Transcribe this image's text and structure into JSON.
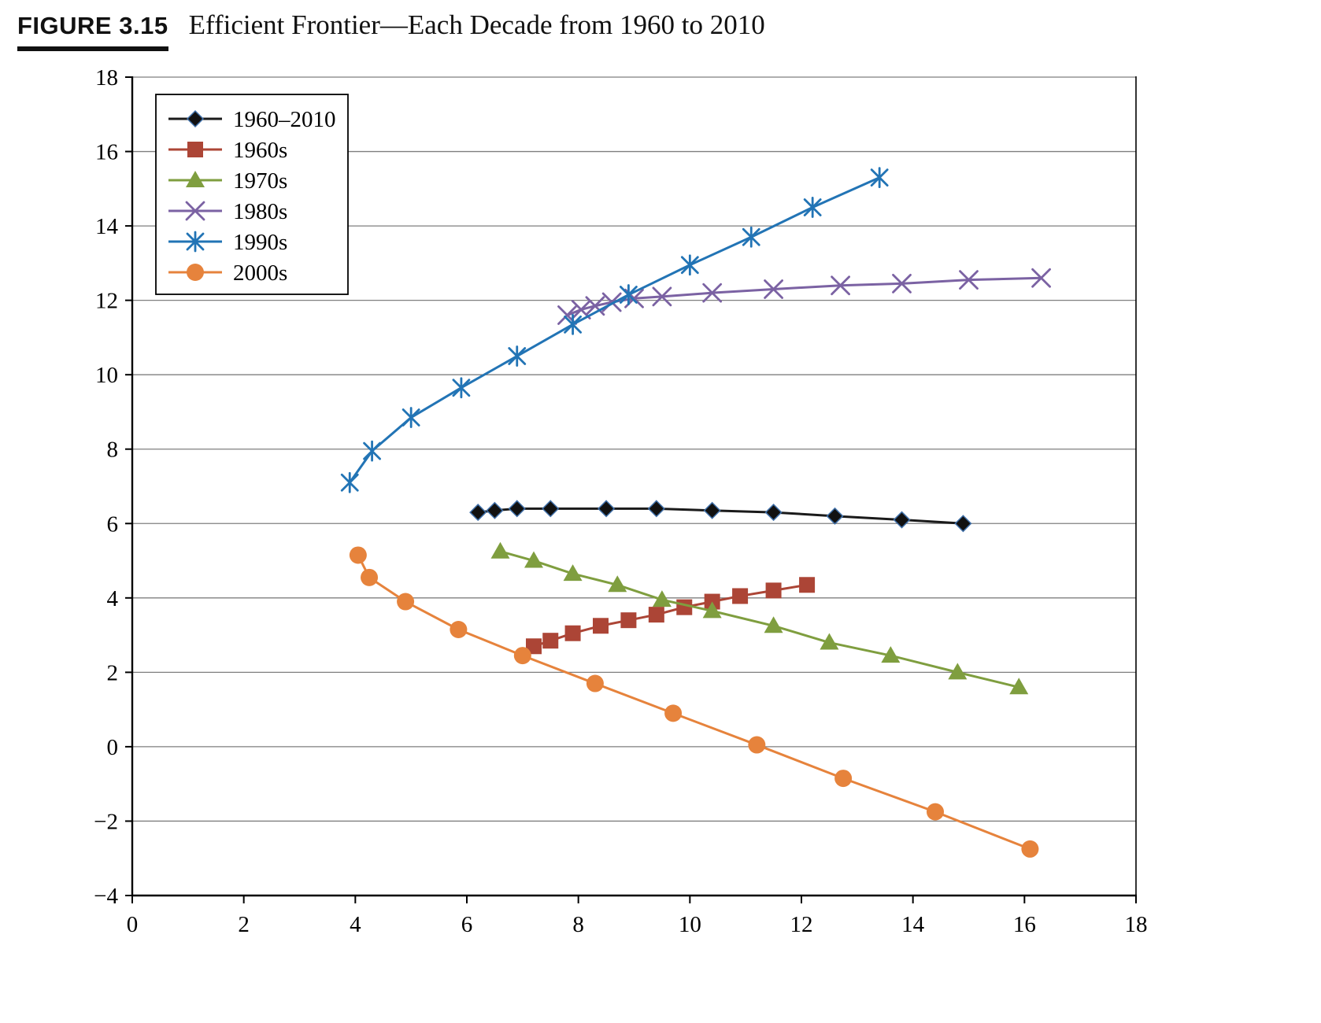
{
  "figure": {
    "label": "FIGURE 3.15",
    "title": "Efficient Frontier—Each Decade from 1960 to 2010"
  },
  "chart_data": {
    "type": "line",
    "title": "Efficient Frontier—Each Decade from 1960 to 2010",
    "xlabel": "",
    "ylabel": "",
    "xlim": [
      0,
      18
    ],
    "ylim": [
      -4,
      18
    ],
    "x_tick_step": 2,
    "y_tick_step": 2,
    "grid": "horizontal",
    "legend_position": "upper-left",
    "series": [
      {
        "name": "1960–2010",
        "marker": "diamond",
        "color": "#1a1a1a",
        "points": [
          [
            6.2,
            6.3
          ],
          [
            6.5,
            6.35
          ],
          [
            6.9,
            6.4
          ],
          [
            7.5,
            6.4
          ],
          [
            8.5,
            6.4
          ],
          [
            9.4,
            6.4
          ],
          [
            10.4,
            6.35
          ],
          [
            11.5,
            6.3
          ],
          [
            12.6,
            6.2
          ],
          [
            13.8,
            6.1
          ],
          [
            14.9,
            6.0
          ]
        ]
      },
      {
        "name": "1960s",
        "marker": "square",
        "color": "#ac4536",
        "points": [
          [
            7.2,
            2.7
          ],
          [
            7.5,
            2.85
          ],
          [
            7.9,
            3.05
          ],
          [
            8.4,
            3.25
          ],
          [
            8.9,
            3.4
          ],
          [
            9.4,
            3.55
          ],
          [
            9.9,
            3.75
          ],
          [
            10.4,
            3.9
          ],
          [
            10.9,
            4.05
          ],
          [
            11.5,
            4.2
          ],
          [
            12.1,
            4.35
          ]
        ]
      },
      {
        "name": "1970s",
        "marker": "triangle",
        "color": "#7f9e3f",
        "points": [
          [
            6.6,
            5.25
          ],
          [
            7.2,
            5.0
          ],
          [
            7.9,
            4.65
          ],
          [
            8.7,
            4.35
          ],
          [
            9.5,
            3.95
          ],
          [
            10.4,
            3.65
          ],
          [
            11.5,
            3.25
          ],
          [
            12.5,
            2.8
          ],
          [
            13.6,
            2.45
          ],
          [
            14.8,
            2.0
          ],
          [
            15.9,
            1.6
          ]
        ]
      },
      {
        "name": "1980s",
        "marker": "x",
        "color": "#7b62a3",
        "points": [
          [
            7.8,
            11.6
          ],
          [
            8.05,
            11.75
          ],
          [
            8.3,
            11.85
          ],
          [
            8.6,
            11.95
          ],
          [
            9.0,
            12.05
          ],
          [
            9.5,
            12.1
          ],
          [
            10.4,
            12.2
          ],
          [
            11.5,
            12.3
          ],
          [
            12.7,
            12.4
          ],
          [
            13.8,
            12.45
          ],
          [
            15.0,
            12.55
          ],
          [
            16.3,
            12.6
          ]
        ]
      },
      {
        "name": "1990s",
        "marker": "asterisk",
        "color": "#2274b5",
        "points": [
          [
            3.9,
            7.1
          ],
          [
            4.3,
            7.95
          ],
          [
            5.0,
            8.85
          ],
          [
            5.9,
            9.65
          ],
          [
            6.9,
            10.5
          ],
          [
            7.9,
            11.35
          ],
          [
            8.9,
            12.15
          ],
          [
            10.0,
            12.95
          ],
          [
            11.1,
            13.7
          ],
          [
            12.2,
            14.5
          ],
          [
            13.4,
            15.3
          ]
        ]
      },
      {
        "name": "2000s",
        "marker": "circle",
        "color": "#e6833c",
        "points": [
          [
            4.05,
            5.15
          ],
          [
            4.25,
            4.55
          ],
          [
            4.9,
            3.9
          ],
          [
            5.85,
            3.15
          ],
          [
            7.0,
            2.45
          ],
          [
            8.3,
            1.7
          ],
          [
            9.7,
            0.9
          ],
          [
            11.2,
            0.05
          ],
          [
            12.75,
            -0.85
          ],
          [
            14.4,
            -1.75
          ],
          [
            16.1,
            -2.75
          ]
        ]
      }
    ]
  }
}
